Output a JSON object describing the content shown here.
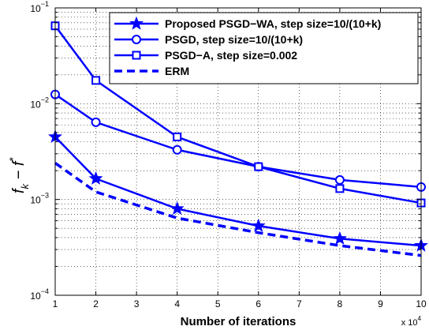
{
  "chart_data": {
    "type": "line",
    "xlabel": "Number of iterations",
    "ylabel_main": "f",
    "ylabel_sub": "k",
    "ylabel_mid": " − f",
    "ylabel_sup": "*",
    "x_multiplier_base": "x 10",
    "x_multiplier_exp": "4",
    "x_ticks": [
      1,
      2,
      3,
      4,
      5,
      6,
      7,
      8,
      9,
      10
    ],
    "xlim": [
      1,
      10
    ],
    "y_scale": "log",
    "ylim": [
      0.0001,
      0.1
    ],
    "y_ticks": [
      {
        "value": 0.1,
        "base": "10",
        "exp": "−1"
      },
      {
        "value": 0.01,
        "base": "10",
        "exp": "−2"
      },
      {
        "value": 0.001,
        "base": "10",
        "exp": "−3"
      },
      {
        "value": 0.0001,
        "base": "10",
        "exp": "−4"
      }
    ],
    "grid": true,
    "legend_position": "top-right",
    "color": "#0000ff",
    "series": [
      {
        "name": "Proposed PSGD−WA, step size=10/(10+k)",
        "marker": "star",
        "dashed": false,
        "x": [
          1,
          2,
          4,
          6,
          8,
          10
        ],
        "y": [
          0.0045,
          0.00165,
          0.0008,
          0.00053,
          0.00039,
          0.00033
        ]
      },
      {
        "name": "PSGD, step size=10/(10+k)",
        "marker": "circle",
        "dashed": false,
        "x": [
          1,
          2,
          4,
          6,
          8,
          10
        ],
        "y": [
          0.0125,
          0.0064,
          0.0033,
          0.0022,
          0.0016,
          0.00135
        ]
      },
      {
        "name": "PSGD−A,  step size=0.002",
        "marker": "square",
        "dashed": false,
        "x": [
          1,
          2,
          4,
          6,
          8,
          10
        ],
        "y": [
          0.065,
          0.0175,
          0.0045,
          0.0022,
          0.0013,
          0.00092
        ]
      },
      {
        "name": "ERM",
        "marker": "none",
        "dashed": true,
        "x": [
          1,
          2,
          4,
          6,
          8,
          10
        ],
        "y": [
          0.0024,
          0.0012,
          0.00064,
          0.00045,
          0.00033,
          0.00026
        ]
      }
    ]
  }
}
